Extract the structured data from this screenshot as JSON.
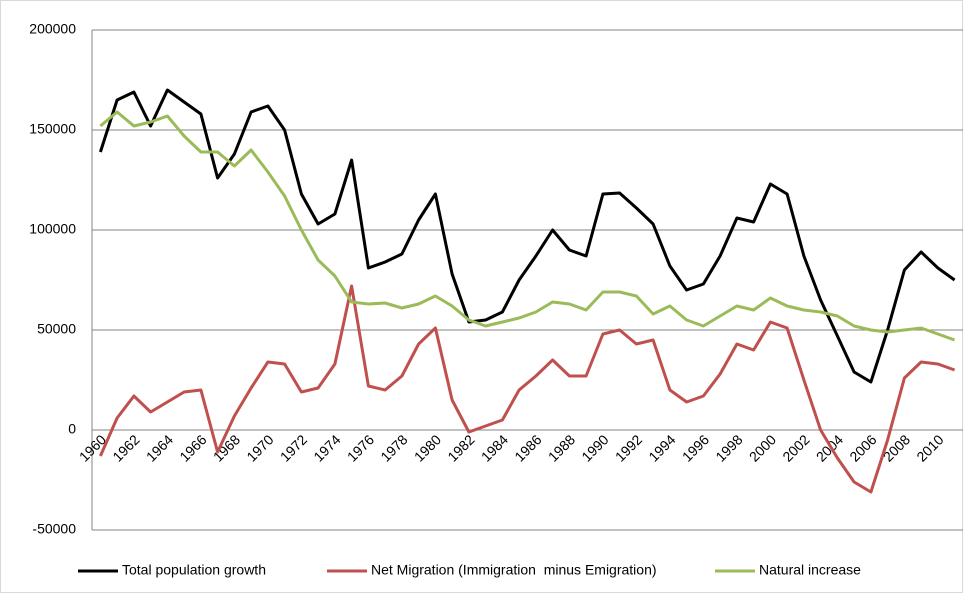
{
  "chart_data": {
    "type": "line",
    "categories": [
      "1960",
      null,
      "1962",
      null,
      "1964",
      null,
      "1966",
      null,
      "1968",
      null,
      "1970",
      null,
      "1972",
      null,
      "1974",
      null,
      "1976",
      null,
      "1978",
      null,
      "1980",
      null,
      "1982",
      null,
      "1984",
      null,
      "1986",
      null,
      "1988",
      null,
      "1990",
      null,
      "1992",
      null,
      "1994",
      null,
      "1996",
      null,
      "1998",
      null,
      "2000",
      null,
      "2002",
      null,
      "2004",
      null,
      "2006",
      null,
      "2008",
      null,
      "2010",
      null
    ],
    "series": [
      {
        "name": "Total population growth",
        "color": "#000000",
        "values": [
          139000,
          165000,
          169000,
          152000,
          170000,
          164000,
          158000,
          126000,
          138000,
          159000,
          162000,
          150000,
          118000,
          103000,
          108000,
          135000,
          81000,
          84000,
          88000,
          105000,
          118000,
          78000,
          54000,
          55000,
          59000,
          75000,
          87000,
          100000,
          90000,
          87000,
          118000,
          118500,
          111000,
          103000,
          82000,
          70000,
          73000,
          87000,
          106000,
          104000,
          123000,
          118000,
          87000,
          65000,
          47000,
          29000,
          24000,
          50000,
          80000,
          89000,
          81000,
          75000
        ]
      },
      {
        "name": "Net Migration (Immigration  minus Emigration)",
        "color": "#c0504d",
        "values": [
          -13000,
          6000,
          17000,
          9000,
          14000,
          19000,
          20000,
          -11000,
          7000,
          21000,
          34000,
          33000,
          19000,
          21000,
          33000,
          72000,
          22000,
          20000,
          27000,
          43000,
          51000,
          15000,
          -1000,
          2000,
          5000,
          20000,
          27000,
          35000,
          27000,
          27000,
          48000,
          50000,
          43000,
          45000,
          20000,
          14000,
          17000,
          28000,
          43000,
          40000,
          54000,
          51000,
          25000,
          0,
          -14000,
          -26000,
          -31000,
          -5000,
          26000,
          34000,
          33000,
          30000
        ]
      },
      {
        "name": "Natural increase",
        "color": "#9bbb59",
        "values": [
          152000,
          159000,
          152000,
          154000,
          157000,
          147000,
          139000,
          139000,
          132000,
          140000,
          129000,
          117000,
          100000,
          85000,
          77000,
          64000,
          63000,
          63500,
          61000,
          63000,
          67000,
          62000,
          55000,
          52000,
          54000,
          56000,
          59000,
          64000,
          63000,
          60000,
          69000,
          69000,
          67000,
          58000,
          62000,
          55000,
          52000,
          57000,
          62000,
          60000,
          66000,
          62000,
          60000,
          59000,
          57000,
          52000,
          50000,
          49000,
          50000,
          51000,
          48000,
          45000
        ]
      }
    ],
    "ylim": [
      -50000,
      200000
    ],
    "yticks": [
      -50000,
      0,
      50000,
      100000,
      150000,
      200000
    ],
    "grid": true,
    "legend": "bottom"
  }
}
